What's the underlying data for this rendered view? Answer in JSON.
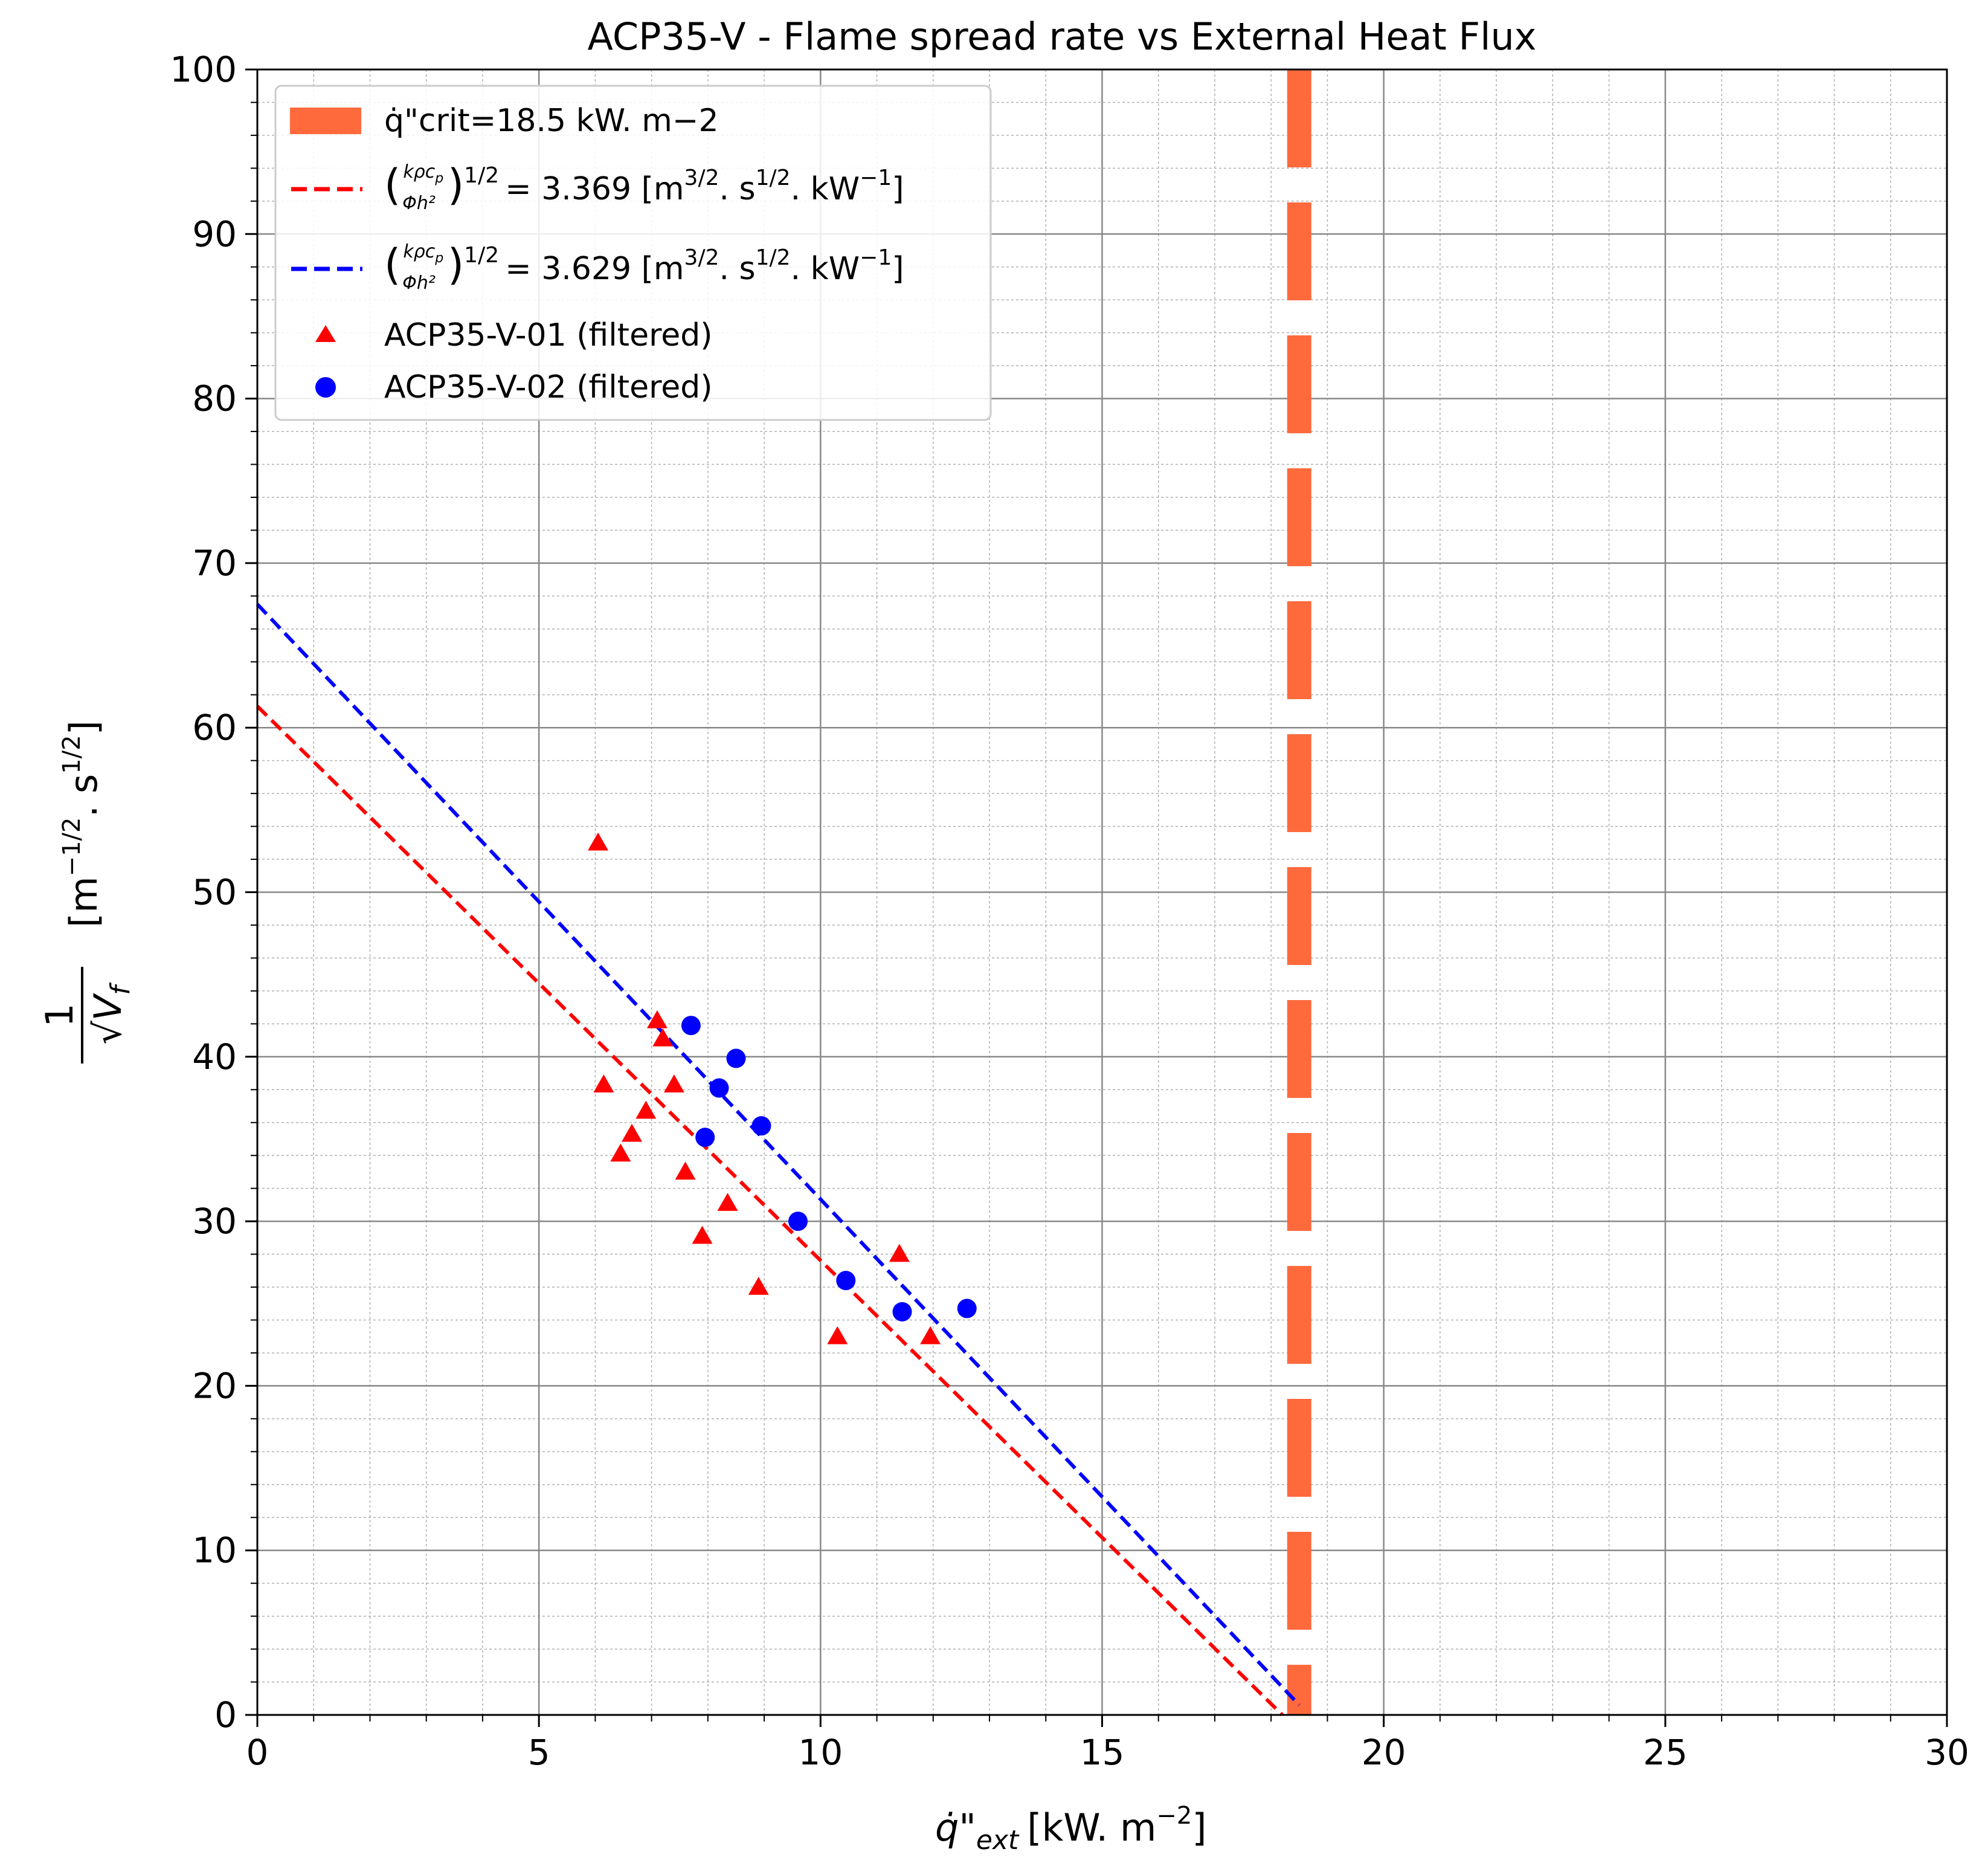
{
  "chart_data": {
    "type": "scatter",
    "title": "ACP35-V - Flame spread rate vs External Heat Flux",
    "xlabel": {
      "base": "q̇\"",
      "sub": "ext",
      "unit": "[kW. m",
      "unit_exp": "−2",
      "unit_end": "]"
    },
    "ylabel": {
      "numerator": "1",
      "denominator": "√V",
      "denominator_sub": "f",
      "unit_open": "[m",
      "unit_exp1": "−1/2",
      "unit_mid": ". s",
      "unit_exp2": "1/2",
      "unit_close": "]"
    },
    "xlim": [
      0,
      30
    ],
    "ylim": [
      0,
      100
    ],
    "xticks": [
      "0",
      "5",
      "10",
      "15",
      "20",
      "25",
      "30"
    ],
    "yticks": [
      "0",
      "10",
      "20",
      "30",
      "40",
      "50",
      "60",
      "70",
      "80",
      "90",
      "100"
    ],
    "grid": {
      "major": true,
      "minor": true
    },
    "legend_position": "top-left",
    "critical_flux": {
      "x": 18.5,
      "label": "q̇\"crit=18.5 kW. m−2",
      "color": "#ff6a3d"
    },
    "fit_lines": [
      {
        "name": "(kρcp/Φh²)^1/2 = 3.369 [m3/2. s1/2. kW−1]",
        "legend_value": "= 3.369 [m",
        "color": "#ff0000",
        "x": [
          0,
          18.2
        ],
        "y": [
          61.3,
          0
        ]
      },
      {
        "name": "(kρcp/Φh²)^1/2 = 3.629 [m3/2. s1/2. kW−1]",
        "legend_value": "= 3.629 [m",
        "color": "#0000ff",
        "x": [
          0,
          18.5
        ],
        "y": [
          67.5,
          0.6
        ]
      }
    ],
    "series": [
      {
        "name": "ACP35-V-01 (filtered)",
        "marker": "triangle",
        "color": "#ff0000",
        "points": [
          [
            6.05,
            53.0
          ],
          [
            6.15,
            38.3
          ],
          [
            6.45,
            34.1
          ],
          [
            6.65,
            35.3
          ],
          [
            6.9,
            36.7
          ],
          [
            7.1,
            42.2
          ],
          [
            7.2,
            41.1
          ],
          [
            7.4,
            38.3
          ],
          [
            7.6,
            33.0
          ],
          [
            7.9,
            29.1
          ],
          [
            8.35,
            31.1
          ],
          [
            8.9,
            26.0
          ],
          [
            10.3,
            23.0
          ],
          [
            11.4,
            28.0
          ],
          [
            11.95,
            23.0
          ]
        ]
      },
      {
        "name": "ACP35-V-02 (filtered)",
        "marker": "circle",
        "color": "#0000ff",
        "points": [
          [
            7.7,
            41.9
          ],
          [
            7.95,
            35.1
          ],
          [
            8.2,
            38.1
          ],
          [
            8.5,
            39.9
          ],
          [
            8.95,
            35.8
          ],
          [
            9.6,
            30.0
          ],
          [
            10.45,
            26.4
          ],
          [
            11.45,
            24.5
          ],
          [
            12.6,
            24.7
          ]
        ]
      }
    ]
  }
}
